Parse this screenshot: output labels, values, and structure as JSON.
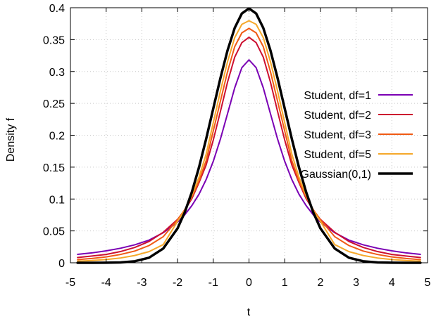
{
  "chart_data": {
    "type": "line",
    "title": "",
    "xlabel": "t",
    "ylabel": "Density f",
    "xlim": [
      -5,
      5
    ],
    "ylim": [
      0,
      0.4
    ],
    "x_ticks": [
      "-5",
      "-4",
      "-3",
      "-2",
      "-1",
      "0",
      "1",
      "2",
      "3",
      "4",
      "5"
    ],
    "y_ticks": [
      "0",
      "0.05",
      "0.1",
      "0.15",
      "0.2",
      "0.25",
      "0.3",
      "0.35",
      "0.4"
    ],
    "grid": true,
    "legend_position": "right",
    "x": [
      -4.8,
      -4.4,
      -4.0,
      -3.6,
      -3.2,
      -2.8,
      -2.4,
      -2.0,
      -1.8,
      -1.6,
      -1.4,
      -1.2,
      -1.0,
      -0.8,
      -0.6,
      -0.4,
      -0.2,
      0.0,
      0.2,
      0.4,
      0.6,
      0.8,
      1.0,
      1.2,
      1.4,
      1.6,
      1.8,
      2.0,
      2.4,
      2.8,
      3.2,
      3.6,
      4.0,
      4.4,
      4.8
    ],
    "series": [
      {
        "name": "Student, df=1",
        "color": "#7a00b4",
        "values": [
          0.0132,
          0.0155,
          0.0187,
          0.0228,
          0.0282,
          0.0355,
          0.0472,
          0.0637,
          0.0752,
          0.0897,
          0.1075,
          0.1305,
          0.1592,
          0.1941,
          0.234,
          0.2744,
          0.306,
          0.3183,
          0.306,
          0.2744,
          0.234,
          0.1941,
          0.1592,
          0.1305,
          0.1075,
          0.0897,
          0.0752,
          0.0637,
          0.0472,
          0.0355,
          0.0282,
          0.0228,
          0.0187,
          0.0155,
          0.0132
        ]
      },
      {
        "name": "Student, df=2",
        "color": "#cc1030",
        "values": [
          0.0083,
          0.0106,
          0.0131,
          0.0176,
          0.024,
          0.0334,
          0.0479,
          0.068,
          0.0827,
          0.1006,
          0.1257,
          0.1533,
          0.1925,
          0.2374,
          0.2835,
          0.3225,
          0.3452,
          0.3536,
          0.3452,
          0.3225,
          0.2835,
          0.2374,
          0.1925,
          0.1533,
          0.1257,
          0.1006,
          0.0827,
          0.068,
          0.0479,
          0.0334,
          0.024,
          0.0176,
          0.0131,
          0.0106,
          0.0083
        ]
      },
      {
        "name": "Student, df=3",
        "color": "#f05a14",
        "values": [
          0.005,
          0.0068,
          0.0092,
          0.013,
          0.0184,
          0.027,
          0.041,
          0.0675,
          0.0833,
          0.1031,
          0.1281,
          0.1601,
          0.2067,
          0.2535,
          0.2999,
          0.339,
          0.3606,
          0.3676,
          0.3606,
          0.339,
          0.2999,
          0.2535,
          0.2067,
          0.1601,
          0.1281,
          0.1031,
          0.0833,
          0.0675,
          0.041,
          0.027,
          0.0184,
          0.013,
          0.0092,
          0.0068,
          0.005
        ]
      },
      {
        "name": "Student, df=5",
        "color": "#f5a82a",
        "values": [
          0.0026,
          0.0036,
          0.0051,
          0.0075,
          0.0114,
          0.0175,
          0.0286,
          0.0651,
          0.0822,
          0.1054,
          0.1342,
          0.1703,
          0.2197,
          0.2694,
          0.3155,
          0.3532,
          0.374,
          0.3796,
          0.374,
          0.3532,
          0.3155,
          0.2694,
          0.2197,
          0.1703,
          0.1342,
          0.1054,
          0.0822,
          0.0651,
          0.0286,
          0.0175,
          0.0114,
          0.0075,
          0.0051,
          0.0036,
          0.0026
        ]
      },
      {
        "name": "Gaussian(0,1)",
        "color": "#000000",
        "values": [
          0.0,
          0.0,
          0.0001,
          0.0006,
          0.0024,
          0.0079,
          0.0224,
          0.054,
          0.079,
          0.1109,
          0.1497,
          0.1942,
          0.242,
          0.2897,
          0.3332,
          0.3683,
          0.391,
          0.3989,
          0.391,
          0.3683,
          0.3332,
          0.2897,
          0.242,
          0.1942,
          0.1497,
          0.1109,
          0.079,
          0.054,
          0.0224,
          0.0079,
          0.0024,
          0.0006,
          0.0001,
          0.0,
          0.0
        ]
      }
    ]
  }
}
